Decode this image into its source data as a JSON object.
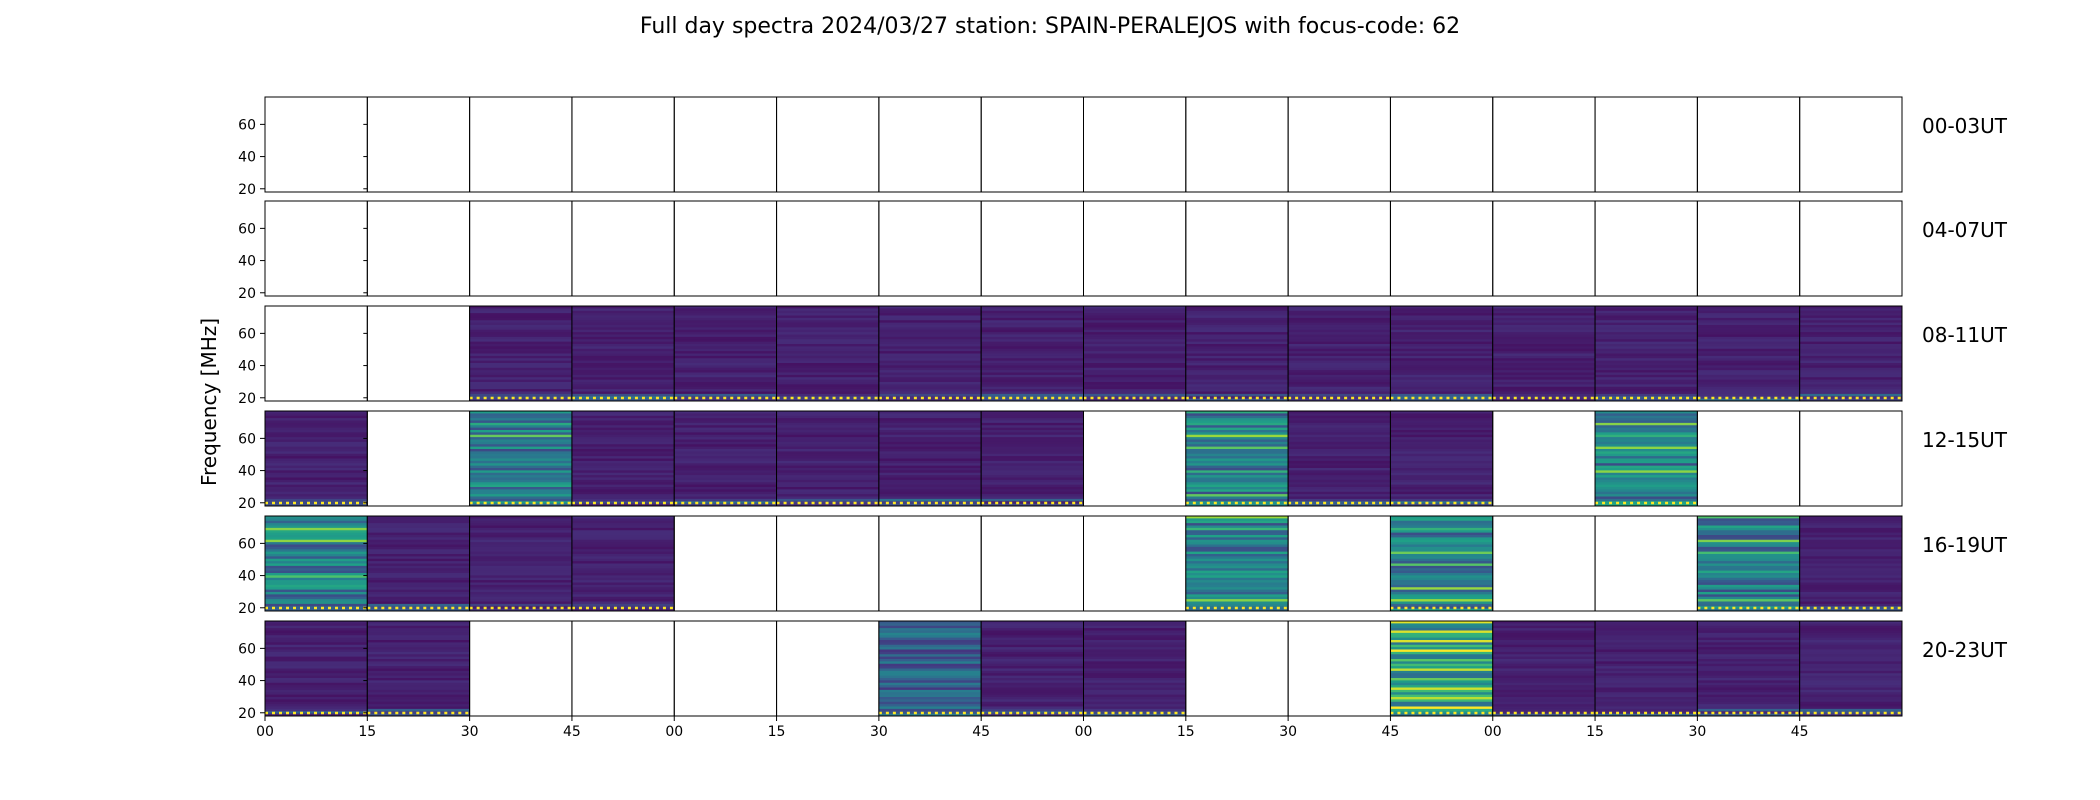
{
  "chart_data": {
    "type": "heatmap",
    "title": "Full day spectra 2024/03/27 station: SPAIN-PERALEJOS with focus-code: 62",
    "ylabel": "Frequency [MHz]",
    "xlabel": "",
    "ylim": [
      18,
      77
    ],
    "yticks": [
      20,
      40,
      60
    ],
    "xticks": [
      "00",
      "15",
      "30",
      "45",
      "00",
      "15",
      "30",
      "45",
      "00",
      "15",
      "30",
      "45",
      "00",
      "15",
      "30",
      "45"
    ],
    "colormap": [
      "#440154",
      "#46327e",
      "#365c8d",
      "#277f8e",
      "#1fa187",
      "#4ac16d",
      "#a0da39",
      "#fde725"
    ],
    "rows": [
      {
        "label": "00-03UT",
        "panels": [
          0,
          0,
          0,
          0,
          0,
          0,
          0,
          0,
          0,
          0,
          0,
          0,
          0,
          0,
          0,
          0
        ]
      },
      {
        "label": "04-07UT",
        "panels": [
          0,
          0,
          0,
          0,
          0,
          0,
          0,
          0,
          0,
          0,
          0,
          0,
          0,
          0,
          0,
          0
        ]
      },
      {
        "label": "08-11UT",
        "panels": [
          0,
          0,
          1,
          1,
          1,
          1,
          1,
          1,
          1,
          1,
          1,
          1,
          1,
          1,
          1,
          1
        ]
      },
      {
        "label": "12-15UT",
        "panels": [
          1,
          0,
          3,
          1,
          1,
          1,
          1,
          1,
          0,
          3,
          1,
          1,
          0,
          3,
          0,
          0
        ]
      },
      {
        "label": "16-19UT",
        "panels": [
          3,
          1,
          1,
          1,
          0,
          0,
          0,
          0,
          0,
          3,
          0,
          3,
          0,
          0,
          3,
          1
        ]
      },
      {
        "label": "20-23UT",
        "panels": [
          1,
          1,
          0,
          0,
          0,
          0,
          2,
          1,
          1,
          0,
          0,
          4,
          1,
          1,
          1,
          1
        ]
      }
    ],
    "panel_levels": {
      "0": "empty",
      "1": "quiet",
      "2": "moderate",
      "3": "active",
      "4": "strong"
    },
    "grid": false
  }
}
